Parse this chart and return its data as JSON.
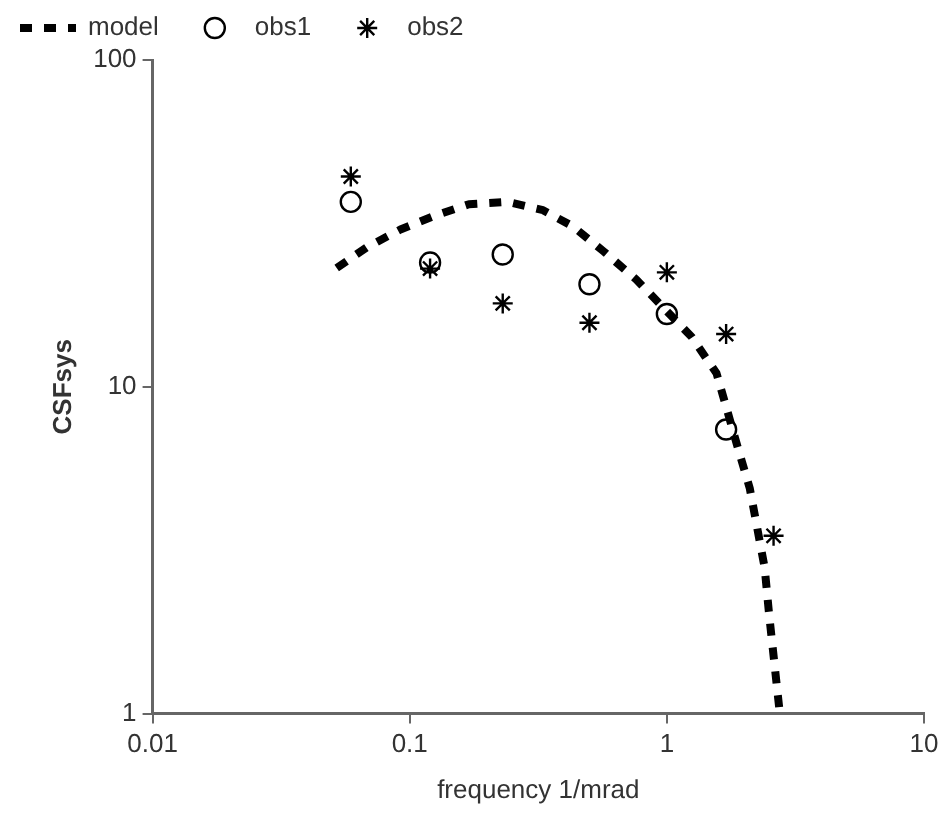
{
  "chart_data": {
    "type": "scatter",
    "xlabel": "frequency 1/mrad",
    "ylabel": "CSFsys",
    "log": "xy",
    "xlim": [
      0.01,
      10
    ],
    "xticks": [
      0.01,
      0.1,
      1,
      10
    ],
    "ylim": [
      1,
      100
    ],
    "yticks": [
      1,
      10,
      100
    ],
    "grid": false,
    "legend": "top left",
    "series": [
      {
        "name": "model",
        "type": "line",
        "color": "#000000",
        "line_style": "dashed",
        "marker": "none",
        "x": [
          0.052,
          0.068,
          0.092,
          0.124,
          0.17,
          0.24,
          0.33,
          0.43,
          0.57,
          0.76,
          1.25,
          1.56,
          1.9,
          2.1,
          2.4,
          2.5,
          2.75
        ],
        "values": [
          23.1,
          26.7,
          30.3,
          33.3,
          36.2,
          36.8,
          34.7,
          31,
          25.9,
          21.3,
          14.2,
          11,
          6.4,
          4.9,
          2.8,
          2.0,
          1
        ]
      },
      {
        "name": "obs1",
        "type": "scatter",
        "color": "#000000",
        "marker": "circle",
        "x": [
          0.059,
          0.12,
          0.23,
          0.5,
          1.0,
          1.7
        ],
        "values": [
          36.8,
          24,
          25.4,
          20.6,
          16.7,
          7.4
        ]
      },
      {
        "name": "obs2",
        "type": "scatter",
        "color": "#000000",
        "marker": "cross",
        "x": [
          0.059,
          0.12,
          0.23,
          0.5,
          1.0,
          1.7,
          2.6
        ],
        "values": [
          44,
          23,
          18,
          15.7,
          22.4,
          14.5,
          3.5
        ]
      }
    ]
  }
}
